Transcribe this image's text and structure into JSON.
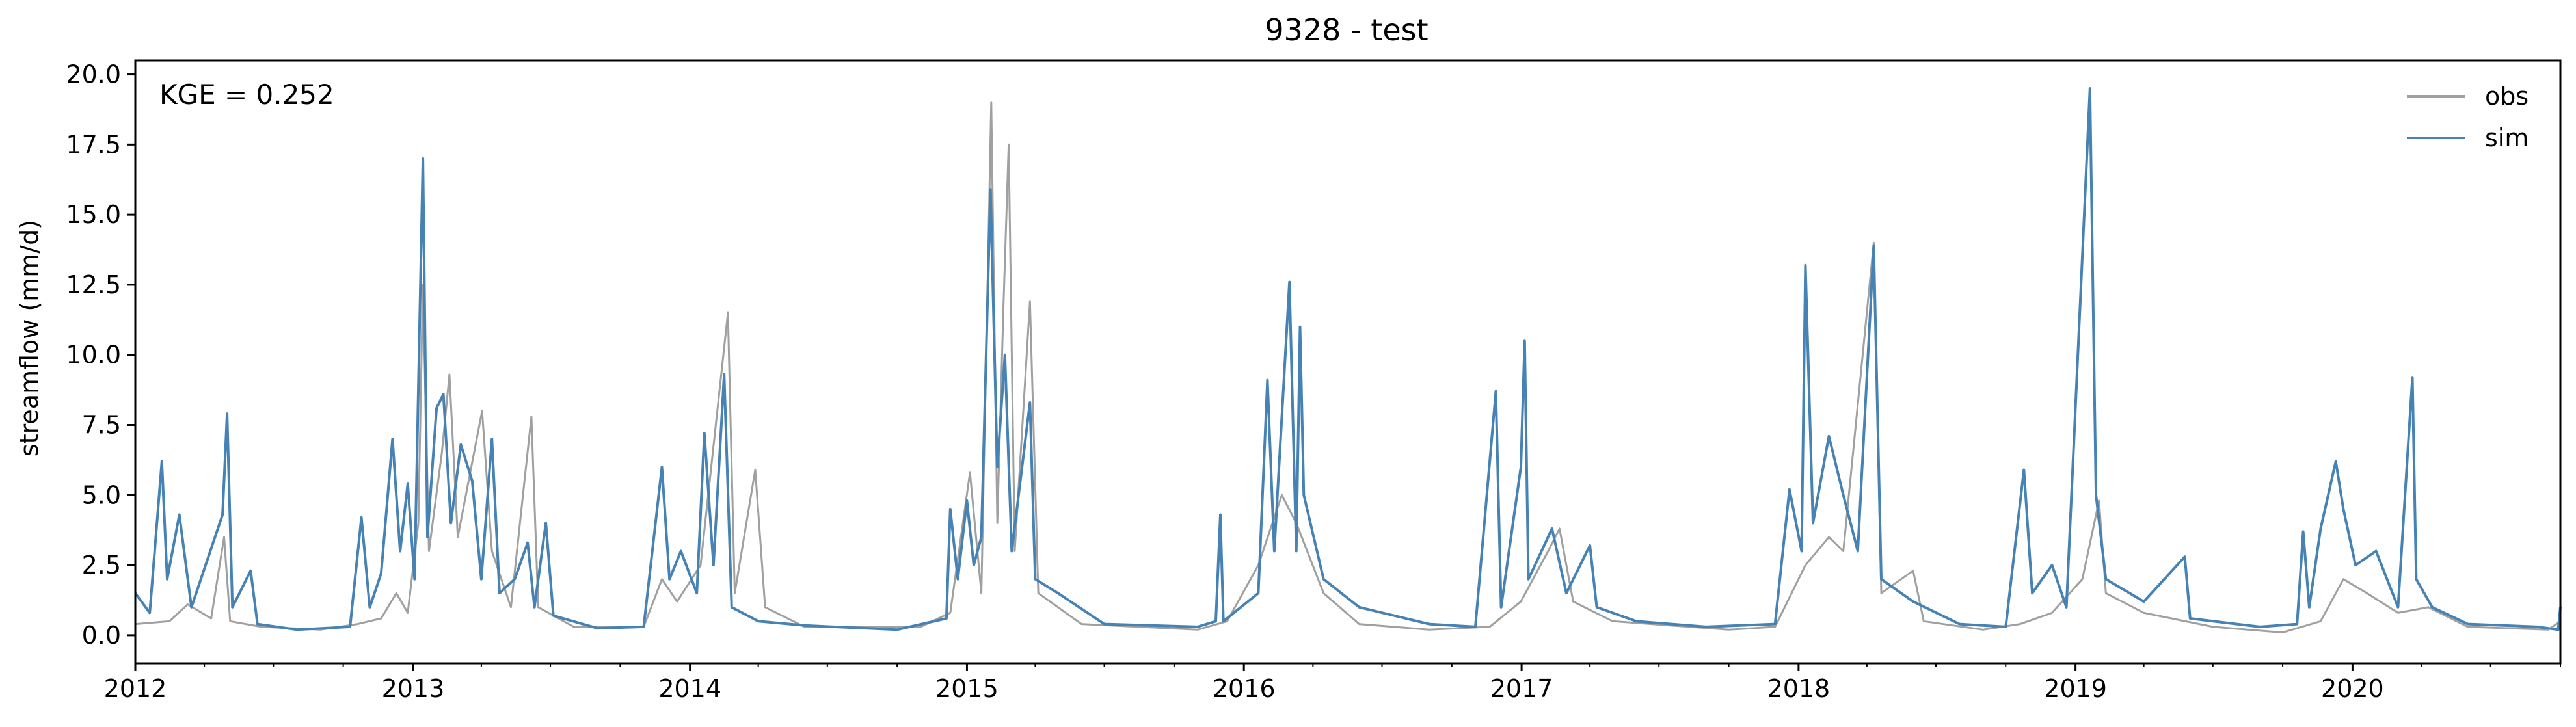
{
  "chart_data": {
    "type": "line",
    "title": "9328 - test",
    "xlabel": "",
    "ylabel": "streamflow (mm/d)",
    "annotation": "KGE = 0.252",
    "xlim": [
      "2012-01-01",
      "2020-10-01"
    ],
    "ylim": [
      -1.0,
      20.5
    ],
    "xticks": [
      "2012",
      "2013",
      "2014",
      "2015",
      "2016",
      "2017",
      "2018",
      "2019",
      "2020"
    ],
    "yticks": [
      "0.0",
      "2.5",
      "5.0",
      "7.5",
      "10.0",
      "12.5",
      "15.0",
      "17.5",
      "20.0"
    ],
    "grid": false,
    "legend_position": "top-right",
    "series": [
      {
        "name": "obs",
        "color": "#a0a0a0",
        "points": [
          [
            "2012-01-01",
            0.4
          ],
          [
            "2012-02-15",
            0.5
          ],
          [
            "2012-03-10",
            1.1
          ],
          [
            "2012-04-10",
            0.6
          ],
          [
            "2012-04-27",
            3.5
          ],
          [
            "2012-05-05",
            0.5
          ],
          [
            "2012-06-15",
            0.3
          ],
          [
            "2012-09-01",
            0.2
          ],
          [
            "2012-10-20",
            0.4
          ],
          [
            "2012-11-20",
            0.6
          ],
          [
            "2012-12-10",
            1.5
          ],
          [
            "2012-12-25",
            0.8
          ],
          [
            "2013-01-08",
            4.0
          ],
          [
            "2013-01-14",
            12.5
          ],
          [
            "2013-01-22",
            3.0
          ],
          [
            "2013-02-08",
            6.5
          ],
          [
            "2013-02-18",
            9.3
          ],
          [
            "2013-03-01",
            3.5
          ],
          [
            "2013-04-02",
            8.0
          ],
          [
            "2013-04-15",
            3.0
          ],
          [
            "2013-05-10",
            1.0
          ],
          [
            "2013-06-06",
            7.8
          ],
          [
            "2013-06-15",
            1.0
          ],
          [
            "2013-08-01",
            0.3
          ],
          [
            "2013-11-01",
            0.3
          ],
          [
            "2013-11-25",
            2.0
          ],
          [
            "2013-12-15",
            1.2
          ],
          [
            "2014-01-15",
            2.5
          ],
          [
            "2014-02-20",
            11.5
          ],
          [
            "2014-03-01",
            1.5
          ],
          [
            "2014-03-28",
            5.9
          ],
          [
            "2014-04-10",
            1.0
          ],
          [
            "2014-06-01",
            0.3
          ],
          [
            "2014-11-01",
            0.3
          ],
          [
            "2014-12-10",
            0.8
          ],
          [
            "2015-01-05",
            5.8
          ],
          [
            "2015-01-20",
            1.5
          ],
          [
            "2015-02-02",
            19.0
          ],
          [
            "2015-02-10",
            4.0
          ],
          [
            "2015-02-18",
            11.6
          ],
          [
            "2015-02-25",
            17.5
          ],
          [
            "2015-03-05",
            3.0
          ],
          [
            "2015-03-25",
            11.9
          ],
          [
            "2015-04-05",
            1.5
          ],
          [
            "2015-06-01",
            0.4
          ],
          [
            "2015-11-01",
            0.2
          ],
          [
            "2015-12-10",
            0.5
          ],
          [
            "2016-01-20",
            2.5
          ],
          [
            "2016-02-20",
            5.0
          ],
          [
            "2016-03-10",
            4.0
          ],
          [
            "2016-04-15",
            1.5
          ],
          [
            "2016-06-01",
            0.4
          ],
          [
            "2016-09-01",
            0.2
          ],
          [
            "2016-11-20",
            0.3
          ],
          [
            "2016-12-31",
            1.2
          ],
          [
            "2017-02-05",
            3.0
          ],
          [
            "2017-02-20",
            3.8
          ],
          [
            "2017-03-10",
            1.2
          ],
          [
            "2017-05-01",
            0.5
          ],
          [
            "2017-10-01",
            0.2
          ],
          [
            "2017-12-01",
            0.3
          ],
          [
            "2018-01-10",
            2.5
          ],
          [
            "2018-02-10",
            3.5
          ],
          [
            "2018-03-01",
            3.0
          ],
          [
            "2018-04-10",
            14.0
          ],
          [
            "2018-04-20",
            1.5
          ],
          [
            "2018-06-01",
            2.3
          ],
          [
            "2018-06-15",
            0.5
          ],
          [
            "2018-09-01",
            0.2
          ],
          [
            "2018-10-20",
            0.4
          ],
          [
            "2018-12-01",
            0.8
          ],
          [
            "2019-01-10",
            2.0
          ],
          [
            "2019-02-01",
            4.8
          ],
          [
            "2019-02-10",
            1.5
          ],
          [
            "2019-04-01",
            0.8
          ],
          [
            "2019-07-01",
            0.3
          ],
          [
            "2019-10-01",
            0.1
          ],
          [
            "2019-11-20",
            0.5
          ],
          [
            "2019-12-20",
            2.0
          ],
          [
            "2020-01-20",
            1.5
          ],
          [
            "2020-03-01",
            0.8
          ],
          [
            "2020-04-10",
            1.0
          ],
          [
            "2020-06-01",
            0.3
          ],
          [
            "2020-09-15",
            0.2
          ],
          [
            "2020-10-01",
            0.5
          ]
        ]
      },
      {
        "name": "sim",
        "color": "#4682b4",
        "points": [
          [
            "2012-01-01",
            1.5
          ],
          [
            "2012-01-20",
            0.8
          ],
          [
            "2012-02-05",
            6.2
          ],
          [
            "2012-02-12",
            2.0
          ],
          [
            "2012-02-28",
            4.3
          ],
          [
            "2012-03-15",
            1.0
          ],
          [
            "2012-04-25",
            4.3
          ],
          [
            "2012-05-01",
            7.9
          ],
          [
            "2012-05-08",
            1.0
          ],
          [
            "2012-06-01",
            2.3
          ],
          [
            "2012-06-10",
            0.4
          ],
          [
            "2012-08-01",
            0.2
          ],
          [
            "2012-10-10",
            0.3
          ],
          [
            "2012-10-25",
            4.2
          ],
          [
            "2012-11-05",
            1.0
          ],
          [
            "2012-11-20",
            2.2
          ],
          [
            "2012-12-05",
            7.0
          ],
          [
            "2012-12-15",
            3.0
          ],
          [
            "2012-12-25",
            5.4
          ],
          [
            "2013-01-03",
            2.0
          ],
          [
            "2013-01-14",
            17.0
          ],
          [
            "2013-01-20",
            3.5
          ],
          [
            "2013-02-01",
            8.1
          ],
          [
            "2013-02-10",
            8.6
          ],
          [
            "2013-02-20",
            4.0
          ],
          [
            "2013-03-05",
            6.8
          ],
          [
            "2013-03-20",
            5.5
          ],
          [
            "2013-04-01",
            2.0
          ],
          [
            "2013-04-15",
            7.0
          ],
          [
            "2013-04-25",
            1.5
          ],
          [
            "2013-05-15",
            2.0
          ],
          [
            "2013-06-01",
            3.3
          ],
          [
            "2013-06-10",
            1.0
          ],
          [
            "2013-06-25",
            4.0
          ],
          [
            "2013-07-05",
            0.7
          ],
          [
            "2013-09-01",
            0.25
          ],
          [
            "2013-11-01",
            0.3
          ],
          [
            "2013-11-25",
            6.0
          ],
          [
            "2013-12-05",
            2.0
          ],
          [
            "2013-12-20",
            3.0
          ],
          [
            "2014-01-10",
            1.5
          ],
          [
            "2014-01-20",
            7.2
          ],
          [
            "2014-02-01",
            2.5
          ],
          [
            "2014-02-15",
            9.3
          ],
          [
            "2014-02-25",
            1.0
          ],
          [
            "2014-04-01",
            0.5
          ],
          [
            "2014-06-01",
            0.35
          ],
          [
            "2014-10-01",
            0.2
          ],
          [
            "2014-12-05",
            0.6
          ],
          [
            "2014-12-10",
            4.5
          ],
          [
            "2014-12-20",
            2.0
          ],
          [
            "2015-01-01",
            4.8
          ],
          [
            "2015-01-10",
            2.5
          ],
          [
            "2015-01-20",
            3.5
          ],
          [
            "2015-02-01",
            15.9
          ],
          [
            "2015-02-10",
            6.0
          ],
          [
            "2015-02-20",
            10.0
          ],
          [
            "2015-03-01",
            3.0
          ],
          [
            "2015-03-25",
            8.3
          ],
          [
            "2015-04-01",
            2.0
          ],
          [
            "2015-05-01",
            1.5
          ],
          [
            "2015-07-01",
            0.4
          ],
          [
            "2015-11-01",
            0.3
          ],
          [
            "2015-11-25",
            0.5
          ],
          [
            "2015-12-01",
            4.3
          ],
          [
            "2015-12-05",
            0.5
          ],
          [
            "2016-01-20",
            1.5
          ],
          [
            "2016-02-01",
            9.1
          ],
          [
            "2016-02-10",
            3.0
          ],
          [
            "2016-03-01",
            12.6
          ],
          [
            "2016-03-10",
            3.0
          ],
          [
            "2016-03-15",
            11.0
          ],
          [
            "2016-03-20",
            5.0
          ],
          [
            "2016-04-15",
            2.0
          ],
          [
            "2016-06-01",
            1.0
          ],
          [
            "2016-09-01",
            0.4
          ],
          [
            "2016-11-01",
            0.3
          ],
          [
            "2016-11-28",
            8.7
          ],
          [
            "2016-12-05",
            1.0
          ],
          [
            "2016-12-31",
            6.0
          ],
          [
            "2017-01-05",
            10.5
          ],
          [
            "2017-01-10",
            2.0
          ],
          [
            "2017-02-10",
            3.8
          ],
          [
            "2017-03-01",
            1.5
          ],
          [
            "2017-04-01",
            3.2
          ],
          [
            "2017-04-10",
            1.0
          ],
          [
            "2017-06-01",
            0.5
          ],
          [
            "2017-09-01",
            0.3
          ],
          [
            "2017-12-01",
            0.4
          ],
          [
            "2017-12-20",
            5.2
          ],
          [
            "2018-01-05",
            3.0
          ],
          [
            "2018-01-10",
            13.2
          ],
          [
            "2018-01-20",
            4.0
          ],
          [
            "2018-02-10",
            7.1
          ],
          [
            "2018-03-01",
            5.0
          ],
          [
            "2018-03-20",
            3.0
          ],
          [
            "2018-04-10",
            13.9
          ],
          [
            "2018-04-20",
            2.0
          ],
          [
            "2018-06-01",
            1.2
          ],
          [
            "2018-08-01",
            0.4
          ],
          [
            "2018-10-01",
            0.3
          ],
          [
            "2018-10-25",
            5.9
          ],
          [
            "2018-11-05",
            1.5
          ],
          [
            "2018-12-01",
            2.5
          ],
          [
            "2018-12-20",
            1.0
          ],
          [
            "2019-01-20",
            19.5
          ],
          [
            "2019-01-28",
            5.0
          ],
          [
            "2019-02-10",
            2.0
          ],
          [
            "2019-04-01",
            1.2
          ],
          [
            "2019-05-25",
            2.8
          ],
          [
            "2019-06-01",
            0.6
          ],
          [
            "2019-09-01",
            0.3
          ],
          [
            "2019-10-20",
            0.4
          ],
          [
            "2019-10-28",
            3.7
          ],
          [
            "2019-11-05",
            1.0
          ],
          [
            "2019-11-20",
            3.8
          ],
          [
            "2019-12-10",
            6.2
          ],
          [
            "2019-12-20",
            4.5
          ],
          [
            "2020-01-05",
            2.5
          ],
          [
            "2020-02-01",
            3.0
          ],
          [
            "2020-03-01",
            1.0
          ],
          [
            "2020-03-20",
            9.2
          ],
          [
            "2020-03-25",
            2.0
          ],
          [
            "2020-04-15",
            1.0
          ],
          [
            "2020-06-01",
            0.4
          ],
          [
            "2020-09-01",
            0.3
          ],
          [
            "2020-09-28",
            0.2
          ],
          [
            "2020-10-01",
            1.0
          ]
        ]
      }
    ]
  }
}
